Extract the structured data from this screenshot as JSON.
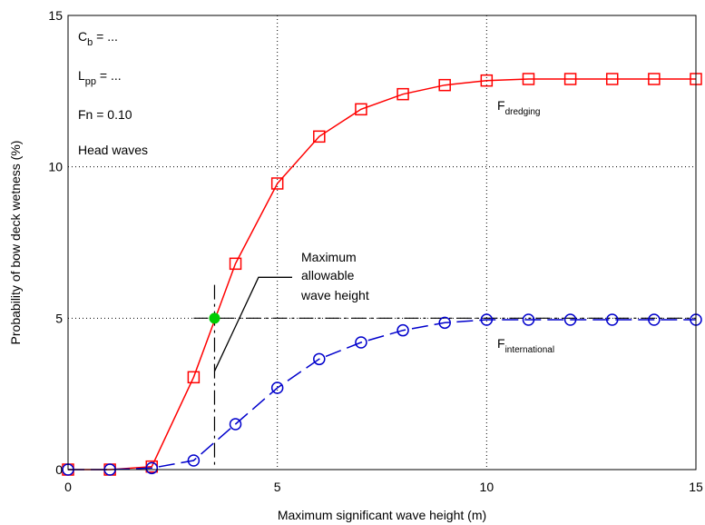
{
  "chart_data": {
    "type": "line",
    "title": "",
    "xlabel": "Maximum significant wave height (m)",
    "ylabel": "Probability of bow deck wetness (%)",
    "xlim": [
      0,
      15
    ],
    "ylim": [
      0,
      15
    ],
    "xticks": [
      "0",
      "5",
      "10",
      "15"
    ],
    "yticks": [
      "0",
      "5",
      "10",
      "15"
    ],
    "grid": true,
    "colors": {
      "red": "#ff0000",
      "blue": "#0000cc",
      "green": "#00cc00"
    },
    "series": [
      {
        "name": "F_dredging",
        "label_main": "F",
        "label_sub": "dredging",
        "marker": "square",
        "line": "solid",
        "color": "#ff0000",
        "x": [
          0,
          1,
          2,
          3,
          4,
          5,
          6,
          7,
          8,
          9,
          10,
          11,
          12,
          13,
          14,
          15
        ],
        "y": [
          0,
          0,
          0.1,
          3.05,
          6.8,
          9.45,
          11.0,
          11.9,
          12.4,
          12.7,
          12.85,
          12.9,
          12.9,
          12.9,
          12.9,
          12.9
        ]
      },
      {
        "name": "F_international",
        "label_main": "F",
        "label_sub": "international",
        "marker": "circle",
        "line": "dashed",
        "color": "#0000cc",
        "x": [
          0,
          1,
          2,
          3,
          4,
          5,
          6,
          7,
          8,
          9,
          10,
          11,
          12,
          13,
          14,
          15
        ],
        "y": [
          0,
          0,
          0.05,
          0.3,
          1.5,
          2.7,
          3.65,
          4.2,
          4.6,
          4.85,
          4.95,
          4.95,
          4.95,
          4.95,
          4.95,
          4.95
        ]
      }
    ],
    "annotations": {
      "cb": {
        "main": "C",
        "sub": "b",
        "rest": " = ..."
      },
      "lpp": {
        "main": "L",
        "sub": "pp",
        "rest": " = ..."
      },
      "fn": "Fn = 0.10",
      "waves": "Head waves",
      "callout_lines": [
        "Maximum",
        "allowable",
        "wave height"
      ],
      "threshold_y": 5,
      "intersection": {
        "x": 3.5,
        "y": 5
      }
    }
  }
}
